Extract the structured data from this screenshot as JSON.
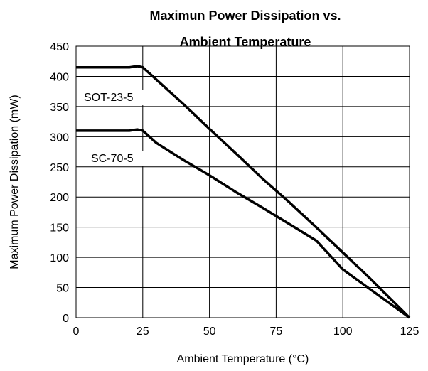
{
  "chart_data": {
    "type": "line",
    "title": "Maximun Power Dissipation vs. Ambient Temperature",
    "xlabel": "Ambient Temperature (°C)",
    "ylabel": "Maximum Power Dissipation (mW)",
    "series": [
      {
        "name": "SOT-23-5",
        "color": "#000000",
        "x": [
          0,
          20,
          23,
          25,
          30,
          40,
          50,
          60,
          70,
          80,
          90,
          100,
          110,
          125
        ],
        "values": [
          415,
          415,
          417,
          415,
          395,
          355,
          313,
          272,
          230,
          191,
          150,
          108,
          66,
          0
        ]
      },
      {
        "name": "SC-70-5",
        "color": "#000000",
        "x": [
          0,
          20,
          23,
          25,
          30,
          40,
          50,
          60,
          70,
          80,
          90,
          100,
          110,
          125
        ],
        "values": [
          310,
          310,
          312,
          310,
          290,
          262,
          236,
          208,
          182,
          155,
          128,
          80,
          48,
          0
        ]
      }
    ],
    "xlim": [
      0,
      125
    ],
    "xticks": [
      0,
      25,
      50,
      75,
      100,
      125
    ],
    "ylim": [
      0,
      450
    ],
    "yticks": [
      0,
      50,
      100,
      150,
      200,
      250,
      300,
      350,
      400,
      450
    ],
    "grid": true
  }
}
